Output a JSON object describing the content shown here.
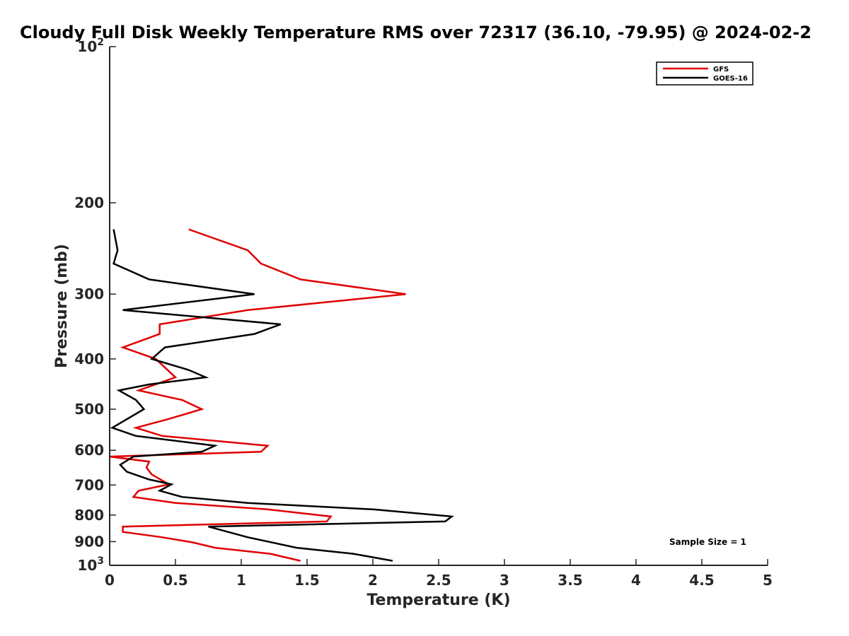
{
  "chart_data": {
    "type": "line",
    "title": "Cloudy Full Disk Weekly Temperature RMS over 72317 (36.10, -79.95) @ 2024-02-2",
    "xlabel": "Temperature (K)",
    "ylabel": "Pressure (mb)",
    "xlim": [
      0,
      5
    ],
    "ylim": [
      100,
      1000
    ],
    "y_scale": "log",
    "y_reversed": true,
    "grid": false,
    "legend_position": "top-right",
    "x_ticks": [
      "0",
      "0.5",
      "1",
      "1.5",
      "2",
      "2.5",
      "3",
      "3.5",
      "4",
      "4.5",
      "5"
    ],
    "y_ticks": [
      {
        "value": 100,
        "base": "10",
        "exp": "2"
      },
      {
        "value": 200,
        "label": "200"
      },
      {
        "value": 300,
        "label": "300"
      },
      {
        "value": 400,
        "label": "400"
      },
      {
        "value": 500,
        "label": "500"
      },
      {
        "value": 600,
        "label": "600"
      },
      {
        "value": 700,
        "label": "700"
      },
      {
        "value": 800,
        "label": "800"
      },
      {
        "value": 900,
        "label": "900"
      },
      {
        "value": 1000,
        "base": "10",
        "exp": "3"
      }
    ],
    "annotation": "Sample Size = 1",
    "series": [
      {
        "name": "GFS",
        "color": "#e00000",
        "points": [
          [
            0.6,
            225
          ],
          [
            1.05,
            247
          ],
          [
            1.15,
            262
          ],
          [
            1.45,
            281
          ],
          [
            2.25,
            300
          ],
          [
            1.05,
            322
          ],
          [
            0.38,
            343
          ],
          [
            0.38,
            358
          ],
          [
            0.1,
            380
          ],
          [
            0.35,
            400
          ],
          [
            0.5,
            434
          ],
          [
            0.22,
            460
          ],
          [
            0.55,
            480
          ],
          [
            0.7,
            500
          ],
          [
            0.45,
            522
          ],
          [
            0.2,
            543
          ],
          [
            0.4,
            563
          ],
          [
            1.2,
            588
          ],
          [
            1.15,
            604
          ],
          [
            0.0,
            617
          ],
          [
            0.3,
            631
          ],
          [
            0.28,
            648
          ],
          [
            0.32,
            668
          ],
          [
            0.45,
            698
          ],
          [
            0.22,
            718
          ],
          [
            0.18,
            738
          ],
          [
            0.5,
            758
          ],
          [
            1.2,
            780
          ],
          [
            1.68,
            805
          ],
          [
            1.65,
            823
          ],
          [
            0.1,
            842
          ],
          [
            0.1,
            862
          ],
          [
            0.4,
            883
          ],
          [
            0.63,
            903
          ],
          [
            0.8,
            925
          ],
          [
            1.22,
            950
          ],
          [
            1.45,
            980
          ]
        ]
      },
      {
        "name": "GOES-16",
        "color": "#000000",
        "points": [
          [
            0.03,
            225
          ],
          [
            0.06,
            247
          ],
          [
            0.03,
            262
          ],
          [
            0.3,
            281
          ],
          [
            1.1,
            300
          ],
          [
            0.1,
            322
          ],
          [
            1.3,
            343
          ],
          [
            1.1,
            358
          ],
          [
            0.42,
            380
          ],
          [
            0.32,
            400
          ],
          [
            0.6,
            420
          ],
          [
            0.73,
            434
          ],
          [
            0.3,
            448
          ],
          [
            0.07,
            460
          ],
          [
            0.2,
            480
          ],
          [
            0.26,
            500
          ],
          [
            0.02,
            543
          ],
          [
            0.2,
            563
          ],
          [
            0.8,
            588
          ],
          [
            0.7,
            604
          ],
          [
            0.18,
            617
          ],
          [
            0.08,
            640
          ],
          [
            0.13,
            660
          ],
          [
            0.3,
            683
          ],
          [
            0.47,
            698
          ],
          [
            0.38,
            718
          ],
          [
            0.55,
            738
          ],
          [
            1.05,
            758
          ],
          [
            2.0,
            780
          ],
          [
            2.6,
            805
          ],
          [
            2.55,
            823
          ],
          [
            0.75,
            842
          ],
          [
            1.05,
            883
          ],
          [
            1.42,
            925
          ],
          [
            1.85,
            950
          ],
          [
            2.15,
            980
          ]
        ]
      }
    ]
  }
}
